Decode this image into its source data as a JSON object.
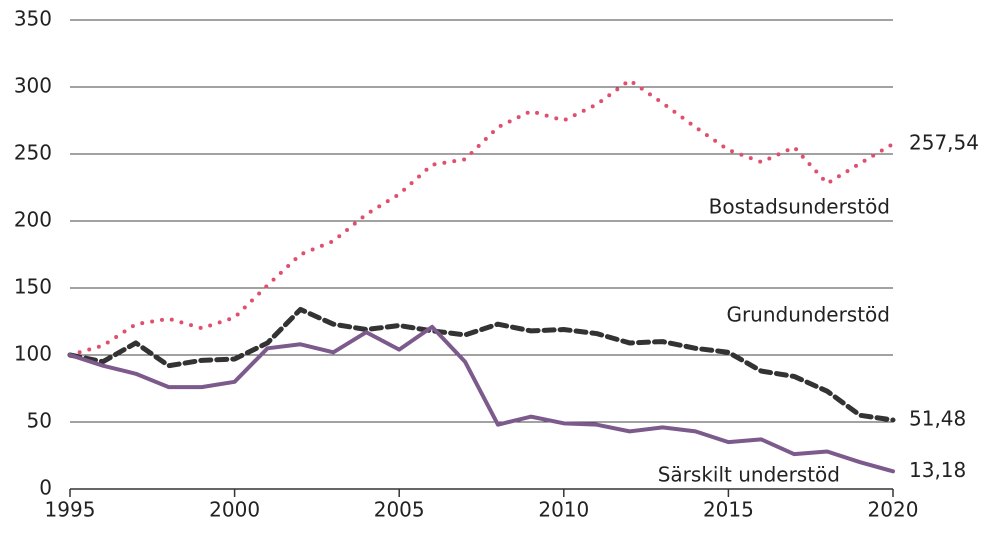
{
  "chart_data": {
    "type": "line",
    "x": [
      1995,
      1996,
      1997,
      1998,
      1999,
      2000,
      2001,
      2002,
      2003,
      2004,
      2005,
      2006,
      2007,
      2008,
      2009,
      2010,
      2011,
      2012,
      2013,
      2014,
      2015,
      2016,
      2017,
      2018,
      2019,
      2020
    ],
    "series": [
      {
        "name": "Bostadsunderstöd",
        "color": "#e0506e",
        "style": "dotted",
        "values": [
          100,
          107,
          123,
          127,
          120,
          128,
          152,
          175,
          185,
          205,
          220,
          242,
          246,
          270,
          282,
          275,
          287,
          305,
          288,
          270,
          253,
          244,
          255,
          228,
          243,
          257.54
        ],
        "value_labels": [
          null,
          null,
          null,
          null,
          null,
          null,
          null,
          null,
          null,
          null,
          null,
          null,
          null,
          null,
          null,
          null,
          null,
          null,
          null,
          null,
          null,
          null,
          null,
          null,
          null,
          "257,54"
        ]
      },
      {
        "name": "Grundunderstöd",
        "color": "#333333",
        "style": "dashed",
        "values": [
          100,
          95,
          109,
          92,
          96,
          97,
          109,
          134,
          123,
          119,
          122,
          118,
          115,
          123,
          118,
          119,
          116,
          109,
          110,
          105,
          102,
          88,
          84,
          73,
          55,
          51.48
        ],
        "value_labels": [
          null,
          null,
          null,
          null,
          null,
          null,
          null,
          null,
          null,
          null,
          null,
          null,
          null,
          null,
          null,
          null,
          null,
          null,
          null,
          null,
          null,
          null,
          null,
          null,
          null,
          "51,48"
        ]
      },
      {
        "name": "Särskilt understöd",
        "color": "#7d5a8c",
        "style": "solid",
        "values": [
          100,
          92,
          86,
          76,
          76,
          80,
          105,
          108,
          102,
          117,
          104,
          121,
          95,
          48,
          54,
          49,
          48,
          43,
          46,
          43,
          35,
          37,
          26,
          28,
          20,
          13.18
        ],
        "value_labels": [
          null,
          null,
          null,
          null,
          null,
          null,
          null,
          null,
          null,
          null,
          null,
          null,
          null,
          null,
          null,
          null,
          null,
          null,
          null,
          null,
          null,
          null,
          null,
          null,
          null,
          "13,18"
        ]
      }
    ],
    "xlim": [
      1995,
      2020
    ],
    "xticks": [
      1995,
      2000,
      2005,
      2010,
      2015,
      2020
    ],
    "ylim": [
      0,
      350
    ],
    "yticks": [
      0,
      50,
      100,
      150,
      200,
      250,
      300,
      350
    ],
    "grid": true
  }
}
